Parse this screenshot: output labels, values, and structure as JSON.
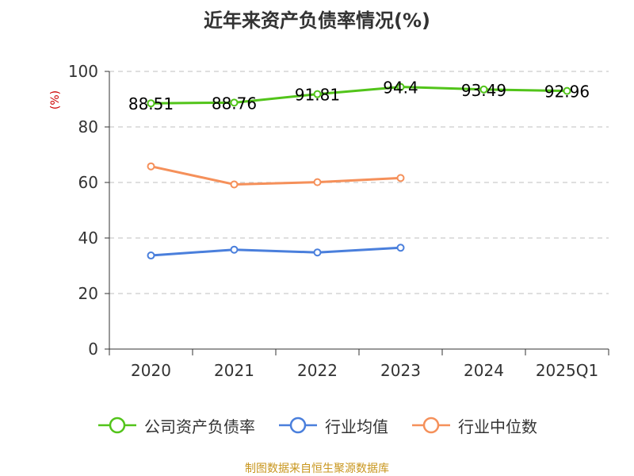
{
  "title": "近年来资产负债率情况(%)",
  "source": "制图数据来自恒生聚源数据库",
  "chart_data": {
    "type": "line",
    "title": "近年来资产负债率情况(%)",
    "ylabel": "(%)",
    "xlabel": "",
    "categories": [
      "2020",
      "2021",
      "2022",
      "2023",
      "2024",
      "2025Q1"
    ],
    "ylim": [
      0,
      100
    ],
    "yticks": [
      0,
      20,
      40,
      60,
      80,
      100
    ],
    "grid": true,
    "legend_position": "bottom",
    "series": [
      {
        "name": "公司资产负债率",
        "color": "#52c41a",
        "values": [
          88.51,
          88.76,
          91.81,
          94.4,
          93.49,
          92.96
        ],
        "labels": [
          "88.51",
          "88.76",
          "91.81",
          "94.4",
          "93.49",
          "92.96"
        ]
      },
      {
        "name": "行业均值",
        "color": "#4a7fdc",
        "values": [
          33.7,
          35.8,
          34.8,
          36.5,
          null,
          null
        ]
      },
      {
        "name": "行业中位数",
        "color": "#f5905a",
        "values": [
          65.8,
          59.3,
          60.1,
          61.6,
          null,
          null
        ]
      }
    ]
  }
}
